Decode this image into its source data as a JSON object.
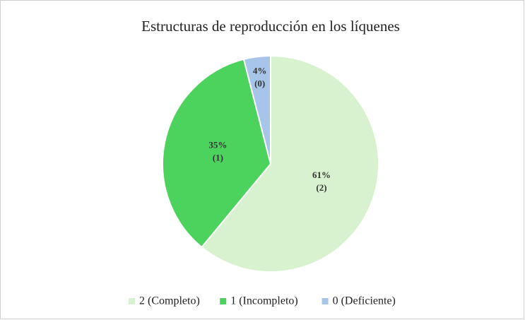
{
  "chart_data": {
    "type": "pie",
    "title": "Estructuras de reproducción en los líquenes",
    "categories": [
      "2 (Completo)",
      "1 (Incompleto)",
      "0 (Deficiente)"
    ],
    "values": [
      61,
      35,
      4
    ],
    "value_labels": [
      "61%",
      "35%",
      "4%"
    ],
    "label_codes": [
      "(2)",
      "(1)",
      "(0)"
    ],
    "colors": [
      "#d8f2cf",
      "#4bd35d",
      "#a7c5e8"
    ],
    "legend": "bottom"
  }
}
